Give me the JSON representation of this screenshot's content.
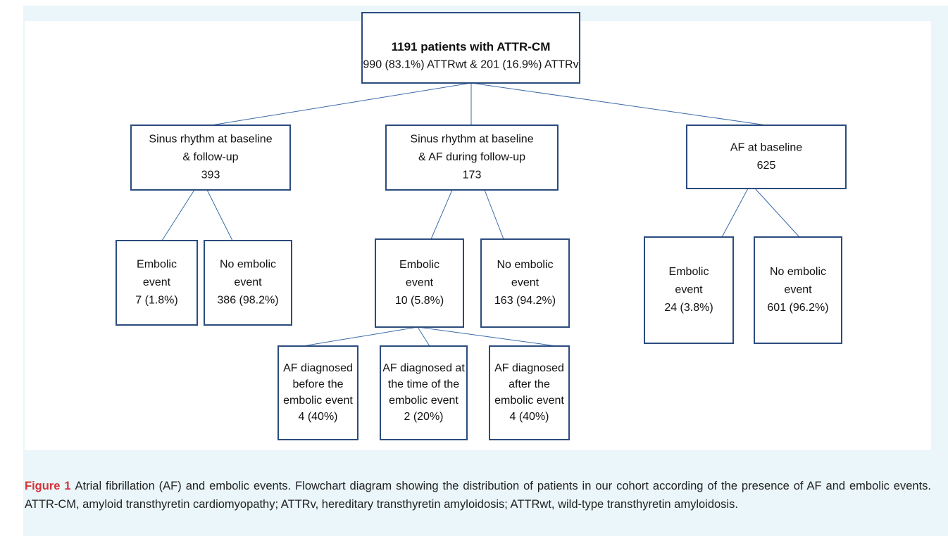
{
  "nodes": [
    {
      "lines": [
        "1191 patients with ATTR-CM",
        "990 (83.1%) ATTRwt & 201 (16.9%) ATTRv"
      ]
    },
    {
      "lines": [
        "Sinus rhythm at baseline",
        "& follow-up",
        "393"
      ]
    },
    {
      "lines": [
        "Sinus rhythm at baseline",
        "& AF during follow-up",
        "173"
      ]
    },
    {
      "lines": [
        "AF at baseline",
        "625"
      ]
    },
    {
      "lines": [
        "Embolic",
        "event",
        "7 (1.8%)"
      ]
    },
    {
      "lines": [
        "No embolic",
        "event",
        "386 (98.2%)"
      ]
    },
    {
      "lines": [
        "Embolic",
        "event",
        "10 (5.8%)"
      ]
    },
    {
      "lines": [
        "No embolic",
        "event",
        "163 (94.2%)"
      ]
    },
    {
      "lines": [
        "Embolic",
        "event",
        "24 (3.8%)"
      ]
    },
    {
      "lines": [
        "No embolic",
        "event",
        "601 (96.2%)"
      ]
    },
    {
      "lines": [
        "AF diagnosed",
        "before the",
        "embolic event",
        "4 (40%)"
      ]
    },
    {
      "lines": [
        "AF diagnosed at",
        "the time of the",
        "embolic event",
        "2 (20%)"
      ]
    },
    {
      "lines": [
        "AF diagnosed",
        "after the",
        "embolic event",
        "4 (40%)"
      ]
    }
  ],
  "caption": {
    "label": "Figure 1",
    "text": "Atrial fibrillation (AF) and embolic events. Flowchart diagram showing the distribution of patients in our cohort according of the presence of AF and embolic events. ATTR-CM, amyloid transthyretin cardiomyopathy; ATTRv, hereditary transthyretin amyloidosis; ATTRwt, wild-type transthyretin amyloidosis."
  }
}
